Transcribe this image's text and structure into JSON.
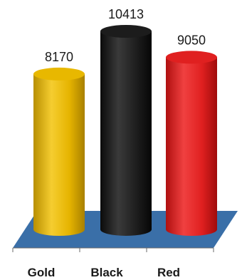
{
  "chart_data": {
    "type": "bar",
    "style": "3d-cylinder",
    "categories": [
      "Gold",
      "Black",
      "Red"
    ],
    "values": [
      8170,
      10413,
      9050
    ],
    "colors": [
      "#e8b800",
      "#1c1c1c",
      "#e02020"
    ],
    "floor_color": "#3a6fa8",
    "data_labels": [
      "8170",
      "10413",
      "9050"
    ],
    "title": "",
    "xlabel": "",
    "ylabel": "",
    "ylim": [
      0,
      10413
    ],
    "grid": false,
    "legend": "none"
  }
}
